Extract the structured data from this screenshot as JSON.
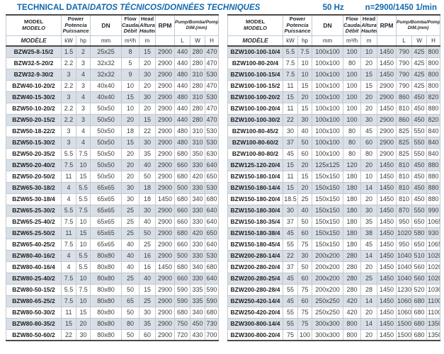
{
  "title": {
    "main": "TECHNICAL DATA/",
    "localized": "DATOS TÉCNICOS/DONNÉES TECHNIQUES",
    "frequency": "50 Hz",
    "speed": "n=2900/1450 1/min"
  },
  "colors": {
    "accent_blue": "#1068ae",
    "row_shade": "#d9dfe6",
    "dark_border": "#4a4a4a",
    "light_border": "#c2c8cf"
  },
  "header": {
    "model_top1": "MODEL",
    "model_top2": "MODELO",
    "model_unit": "MODÈLE",
    "power1": "Power",
    "power2": "Potencia",
    "power3": "Puissance",
    "power_unit_kw": "kW",
    "power_unit_hp": "hp",
    "dn_label": "DN",
    "dn_unit": "mm",
    "flow1": "Flow",
    "flow2": "Caudal",
    "flow3": "Débit",
    "flow_unit": "m³/h",
    "head1": "Head",
    "head2": "Altura",
    "head3": "Hauteur",
    "head_unit": "m",
    "rpm_label": "RPM",
    "rpm_unit": "",
    "dim_label": "Pump/Bomba/Pompe",
    "dim_sub": "DIM.(mm)",
    "dim_unit_l": "L",
    "dim_unit_w": "W",
    "dim_unit_h": "H"
  },
  "left_table": {
    "rows": [
      [
        "BZW25-8-15/2",
        "1.5",
        "2",
        "25x25",
        "8",
        "15",
        "2900",
        "440",
        "280",
        "470"
      ],
      [
        "BZW32-5-20/2",
        "2.2",
        "3",
        "32x32",
        "5",
        "20",
        "2900",
        "440",
        "280",
        "470"
      ],
      [
        "BZW32-9-30/2",
        "3",
        "4",
        "32x32",
        "9",
        "30",
        "2900",
        "480",
        "310",
        "530"
      ],
      [
        "BZW40-10-20/2",
        "2.2",
        "3",
        "40x40",
        "10",
        "20",
        "2900",
        "440",
        "280",
        "470"
      ],
      [
        "BZW40-15-30/2",
        "3",
        "4",
        "40x40",
        "15",
        "30",
        "2900",
        "480",
        "310",
        "530"
      ],
      [
        "BZW50-10-20/2",
        "2.2",
        "3",
        "50x50",
        "10",
        "20",
        "2900",
        "440",
        "280",
        "470"
      ],
      [
        "BZW50-20-15/2",
        "2.2",
        "3",
        "50x50",
        "20",
        "15",
        "2900",
        "440",
        "280",
        "470"
      ],
      [
        "BZW50-18-22/2",
        "3",
        "4",
        "50x50",
        "18",
        "22",
        "2900",
        "480",
        "310",
        "530"
      ],
      [
        "BZW50-15-30/2",
        "3",
        "4",
        "50x50",
        "15",
        "30",
        "2900",
        "480",
        "310",
        "530"
      ],
      [
        "BZW50-20-35/2",
        "5.5",
        "7.5",
        "50x50",
        "20",
        "35",
        "2900",
        "680",
        "350",
        "630"
      ],
      [
        "BZW50-20-40/2",
        "7.5",
        "10",
        "50x50",
        "20",
        "40",
        "2900",
        "660",
        "330",
        "640"
      ],
      [
        "BZW50-20-50/2",
        "11",
        "15",
        "50x50",
        "20",
        "50",
        "2900",
        "680",
        "420",
        "650"
      ],
      [
        "BZW65-30-18/2",
        "4",
        "5.5",
        "65x65",
        "30",
        "18",
        "2900",
        "500",
        "330",
        "530"
      ],
      [
        "BZW65-30-18/4",
        "4",
        "5.5",
        "65x65",
        "30",
        "18",
        "1450",
        "680",
        "340",
        "680"
      ],
      [
        "BZW65-25-30/2",
        "5.5",
        "7.5",
        "65x65",
        "25",
        "30",
        "2900",
        "660",
        "330",
        "640"
      ],
      [
        "BZW65-25-40/2",
        "7.5",
        "10",
        "65x65",
        "25",
        "40",
        "2900",
        "660",
        "330",
        "640"
      ],
      [
        "BZW65-25-50/2",
        "11",
        "15",
        "65x65",
        "25",
        "50",
        "2900",
        "680",
        "420",
        "650"
      ],
      [
        "BZW65-40-25/2",
        "7.5",
        "10",
        "65x65",
        "40",
        "25",
        "2900",
        "660",
        "330",
        "640"
      ],
      [
        "BZW80-40-16/2",
        "4",
        "5.5",
        "80x80",
        "40",
        "16",
        "2900",
        "500",
        "330",
        "530"
      ],
      [
        "BZW80-40-16/4",
        "4",
        "5.5",
        "80x80",
        "40",
        "16",
        "1450",
        "680",
        "340",
        "680"
      ],
      [
        "BZW80-25-40/2",
        "7.5",
        "10",
        "80x80",
        "25",
        "40",
        "2900",
        "660",
        "330",
        "640"
      ],
      [
        "BZW80-50-15/2",
        "5.5",
        "7.5",
        "80x80",
        "50",
        "15",
        "2900",
        "590",
        "335",
        "590"
      ],
      [
        "BZW80-65-25/2",
        "7.5",
        "10",
        "80x80",
        "65",
        "25",
        "2900",
        "590",
        "335",
        "590"
      ],
      [
        "BZW80-50-30/2",
        "11",
        "15",
        "80x80",
        "50",
        "30",
        "2900",
        "680",
        "340",
        "680"
      ],
      [
        "BZW80-80-35/2",
        "15",
        "20",
        "80x80",
        "80",
        "35",
        "2900",
        "750",
        "450",
        "730"
      ],
      [
        "BZW80-50-60/2",
        "22",
        "30",
        "80x80",
        "50",
        "60",
        "2900",
        "720",
        "430",
        "700"
      ]
    ]
  },
  "right_table": {
    "rows": [
      [
        "BZW100-100-10/4",
        "5.5",
        "7.5",
        "100x100",
        "100",
        "10",
        "1450",
        "790",
        "425",
        "800"
      ],
      [
        "BZW100-80-20/4",
        "7.5",
        "10",
        "100x100",
        "80",
        "20",
        "1450",
        "790",
        "425",
        "800"
      ],
      [
        "BZW100-100-15/4",
        "7.5",
        "10",
        "100x100",
        "100",
        "15",
        "1450",
        "790",
        "425",
        "800"
      ],
      [
        "BZW100-100-15/2",
        "11",
        "15",
        "100x100",
        "100",
        "15",
        "2900",
        "790",
        "425",
        "800"
      ],
      [
        "BZW100-100-20/2",
        "15",
        "20",
        "100x100",
        "100",
        "20",
        "2900",
        "860",
        "450",
        "820"
      ],
      [
        "BZW100-100-20/4",
        "11",
        "15",
        "100x100",
        "100",
        "20",
        "1450",
        "810",
        "450",
        "880"
      ],
      [
        "BZW100-100-30/2",
        "22",
        "30",
        "100x100",
        "100",
        "30",
        "2900",
        "860",
        "450",
        "820"
      ],
      [
        "BZW100-80-45/2",
        "30",
        "40",
        "100x100",
        "80",
        "45",
        "2900",
        "825",
        "550",
        "840"
      ],
      [
        "BZW100-80-60/2",
        "37",
        "50",
        "100x100",
        "80",
        "60",
        "2900",
        "825",
        "550",
        "840"
      ],
      [
        "BZW100-80-80/2",
        "45",
        "60",
        "100x100",
        "80",
        "80",
        "2900",
        "825",
        "550",
        "840"
      ],
      [
        "BZW125-120-20/4",
        "15",
        "20",
        "125x125",
        "120",
        "20",
        "1450",
        "810",
        "450",
        "880"
      ],
      [
        "BZW150-180-10/4",
        "11",
        "15",
        "150x150",
        "180",
        "10",
        "1450",
        "810",
        "450",
        "880"
      ],
      [
        "BZW150-180-14/4",
        "15",
        "20",
        "150x150",
        "180",
        "14",
        "1450",
        "810",
        "450",
        "880"
      ],
      [
        "BZW150-180-20/4",
        "18.5",
        "25",
        "150x150",
        "180",
        "20",
        "1450",
        "810",
        "450",
        "880"
      ],
      [
        "BZW150-180-30/4",
        "30",
        "40",
        "150x150",
        "180",
        "30",
        "1450",
        "870",
        "550",
        "990"
      ],
      [
        "BZW150-180-35/4",
        "37",
        "50",
        "150x150",
        "180",
        "35",
        "1450",
        "950",
        "650",
        "1065"
      ],
      [
        "BZW150-180-38/4",
        "45",
        "60",
        "150x150",
        "180",
        "38",
        "1450",
        "1020",
        "580",
        "930"
      ],
      [
        "BZW150-180-45/4",
        "55",
        "75",
        "150x150",
        "180",
        "45",
        "1450",
        "950",
        "650",
        "1065"
      ],
      [
        "BZW200-280-14/4",
        "22",
        "30",
        "200x200",
        "280",
        "14",
        "1450",
        "1040",
        "510",
        "1020"
      ],
      [
        "BZW200-280-20/4",
        "37",
        "50",
        "200x200",
        "280",
        "20",
        "1450",
        "1040",
        "560",
        "1020"
      ],
      [
        "BZW200-280-25/4",
        "45",
        "60",
        "200x200",
        "280",
        "25",
        "1450",
        "1040",
        "560",
        "1020"
      ],
      [
        "BZW200-280-28/4",
        "55",
        "75",
        "200x200",
        "280",
        "28",
        "1450",
        "1230",
        "520",
        "1030"
      ],
      [
        "BZW250-420-14/4",
        "45",
        "60",
        "250x250",
        "420",
        "14",
        "1450",
        "1060",
        "680",
        "1100"
      ],
      [
        "BZW250-420-20/4",
        "55",
        "75",
        "250x250",
        "420",
        "20",
        "1450",
        "1060",
        "680",
        "1100"
      ],
      [
        "BZW300-800-14/4",
        "55",
        "75",
        "300x300",
        "800",
        "14",
        "1450",
        "1500",
        "680",
        "1350"
      ],
      [
        "BZW300-800-20/4",
        "75",
        "100",
        "300x300",
        "800",
        "20",
        "1450",
        "1500",
        "680",
        "1350"
      ]
    ]
  }
}
